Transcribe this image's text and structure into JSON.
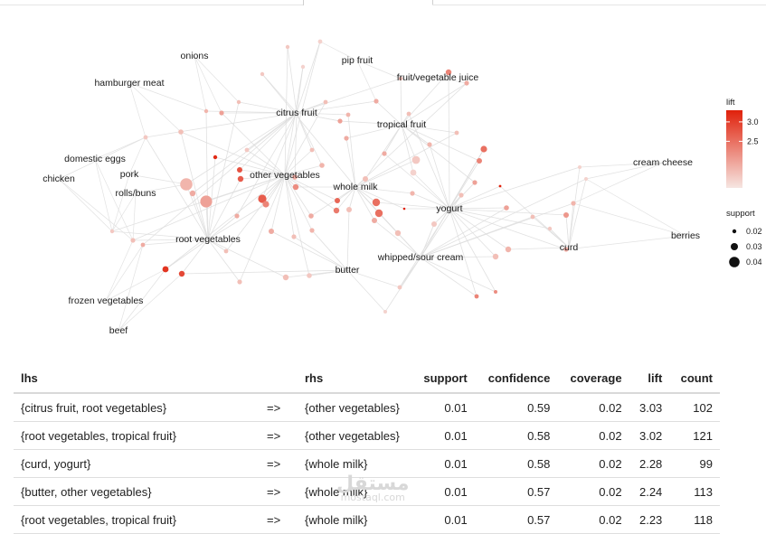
{
  "chart_data": [
    {
      "type": "network",
      "legend": {
        "color_title": "lift",
        "color_ticks": [
          3.0,
          2.5
        ],
        "color_tick_labels": [
          "3.0",
          "2.5"
        ],
        "color_range": [
          1.3,
          3.3
        ],
        "color_low": "#f6e6e2",
        "color_high": "#e0210b",
        "size_title": "support",
        "size_values": [
          0.02,
          0.03,
          0.04
        ],
        "size_labels": [
          "0.02",
          "0.03",
          "0.04"
        ]
      },
      "item_labels": [
        "onions",
        "pip fruit",
        "fruit/vegetable juice",
        "hamburger meat",
        "citrus fruit",
        "tropical fruit",
        "domestic eggs",
        "pork",
        "other vegetables",
        "cream cheese",
        "chicken",
        "rolls/buns",
        "whole milk",
        "yogurt",
        "berries",
        "root vegetables",
        "curd",
        "whipped/sour cream",
        "butter",
        "frozen vegetables",
        "beef"
      ]
    },
    {
      "type": "table",
      "columns": [
        "lhs",
        "",
        "rhs",
        "support",
        "confidence",
        "coverage",
        "lift",
        "count"
      ],
      "rows": [
        {
          "lhs": "{citrus fruit, root vegetables}",
          "arrow": "=>",
          "rhs": "{other vegetables}",
          "support": "0.01",
          "confidence": "0.59",
          "coverage": "0.02",
          "lift": "3.03",
          "count": "102"
        },
        {
          "lhs": "{root vegetables, tropical fruit}",
          "arrow": "=>",
          "rhs": "{other vegetables}",
          "support": "0.01",
          "confidence": "0.58",
          "coverage": "0.02",
          "lift": "3.02",
          "count": "121"
        },
        {
          "lhs": "{curd, yogurt}",
          "arrow": "=>",
          "rhs": "{whole milk}",
          "support": "0.01",
          "confidence": "0.58",
          "coverage": "0.02",
          "lift": "2.28",
          "count": "99"
        },
        {
          "lhs": "{butter, other vegetables}",
          "arrow": "=>",
          "rhs": "{whole milk}",
          "support": "0.01",
          "confidence": "0.57",
          "coverage": "0.02",
          "lift": "2.24",
          "count": "113"
        },
        {
          "lhs": "{root vegetables, tropical fruit}",
          "arrow": "=>",
          "rhs": "{whole milk}",
          "support": "0.01",
          "confidence": "0.57",
          "coverage": "0.02",
          "lift": "2.23",
          "count": "118"
        }
      ]
    }
  ],
  "watermark": {
    "main": "مستقل",
    "sub": "mostaql.com"
  }
}
